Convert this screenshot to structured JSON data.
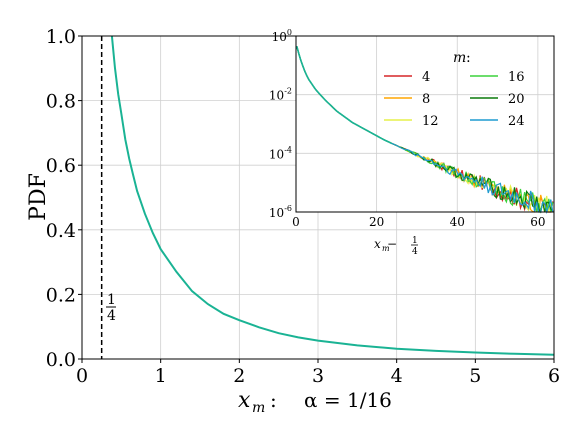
{
  "chart_data": [
    {
      "type": "line",
      "ylabel": "PDF",
      "xlabel_prefix": "x",
      "xlabel_sub": "m",
      "xlabel_rest": ":",
      "xlabel_alpha": "α = 1/16",
      "xlim": [
        0,
        6
      ],
      "ylim": [
        0,
        1.0
      ],
      "xticks": [
        "0",
        "1",
        "2",
        "3",
        "4",
        "5",
        "6"
      ],
      "yticks": [
        "0.0",
        "0.2",
        "0.4",
        "0.6",
        "0.8",
        "1.0"
      ],
      "grid": true,
      "vline": {
        "x": 0.25,
        "style": "dashed",
        "label_num": "1",
        "label_den": "4"
      },
      "series_color": "#1ab394",
      "curve": {
        "x": [
          0.38,
          0.42,
          0.46,
          0.5,
          0.55,
          0.6,
          0.65,
          0.7,
          0.8,
          0.9,
          1.0,
          1.2,
          1.4,
          1.6,
          1.8,
          2.0,
          2.25,
          2.5,
          2.75,
          3.0,
          3.5,
          4.0,
          4.5,
          5.0,
          5.5,
          6.0
        ],
        "y": [
          1.0,
          0.9,
          0.82,
          0.76,
          0.68,
          0.62,
          0.57,
          0.52,
          0.45,
          0.39,
          0.34,
          0.27,
          0.21,
          0.17,
          0.14,
          0.12,
          0.098,
          0.08,
          0.067,
          0.057,
          0.042,
          0.032,
          0.025,
          0.02,
          0.016,
          0.013
        ]
      }
    },
    {
      "type": "line",
      "inset": true,
      "xlabel_prefix": "x",
      "xlabel_sub": "m",
      "xlabel_rest": " − ",
      "xlabel_frac_num": "1",
      "xlabel_frac_den": "4",
      "xlim": [
        0,
        64
      ],
      "ylim_log10": [
        -6,
        0
      ],
      "xticks": [
        "0",
        "20",
        "40",
        "60"
      ],
      "yticks": [
        {
          "base": "10",
          "exp": "0"
        },
        {
          "base": "10",
          "exp": "-2"
        },
        {
          "base": "10",
          "exp": "-4"
        },
        {
          "base": "10",
          "exp": "-6"
        }
      ],
      "grid": true,
      "legend_title_var": "m",
      "legend_title_rest": " :",
      "legend_placement": "top-right",
      "series": [
        {
          "name": "4",
          "color": "#d62728"
        },
        {
          "name": "8",
          "color": "#ffa500"
        },
        {
          "name": "12",
          "color": "#e5f04a"
        },
        {
          "name": "16",
          "color": "#3cd23c"
        },
        {
          "name": "20",
          "color": "#0a7a0a"
        },
        {
          "name": "24",
          "color": "#1f9bd0"
        }
      ],
      "curve": {
        "x": [
          0.2,
          0.5,
          1,
          2,
          3,
          5,
          7,
          10,
          14,
          18,
          22,
          26,
          30,
          34,
          38,
          42,
          46,
          50,
          54,
          58,
          62,
          64
        ],
        "log10_y": [
          -0.35,
          -0.5,
          -0.75,
          -1.15,
          -1.45,
          -1.85,
          -2.15,
          -2.55,
          -2.95,
          -3.25,
          -3.55,
          -3.8,
          -4.05,
          -4.3,
          -4.55,
          -4.8,
          -5.0,
          -5.25,
          -5.45,
          -5.65,
          -5.85,
          -5.95
        ]
      }
    }
  ]
}
